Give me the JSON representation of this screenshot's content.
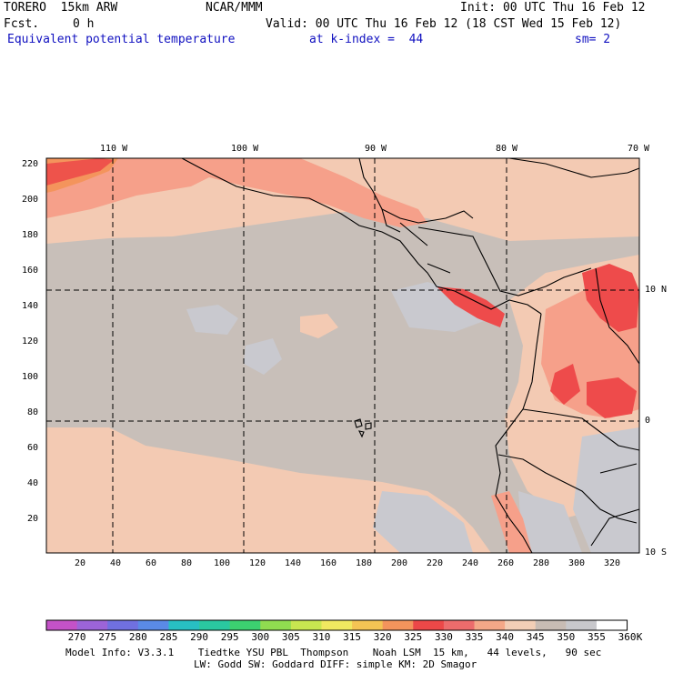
{
  "header": {
    "model": "TORERO  15km ARW",
    "org": "NCAR/MMM",
    "init": "Init: 00 UTC Thu 16 Feb 12",
    "fcst_label": "Fcst.",
    "fcst_value": "0 h",
    "valid": "Valid: 00 UTC Thu 16 Feb 12 (18 CST Wed 15 Feb 12)",
    "field": "Equivalent potential temperature",
    "level": "at k-index =  44",
    "smoothing": "sm= 2"
  },
  "map": {
    "top_lon_labels": [
      "110 W",
      "100 W",
      "90 W",
      "80 W",
      "70 W"
    ],
    "right_lat_labels": [
      "10 N",
      "0",
      "10 S"
    ],
    "y_tick_labels": [
      "220",
      "200",
      "180",
      "160",
      "140",
      "120",
      "100",
      "80",
      "60",
      "40",
      "20"
    ],
    "x_tick_labels": [
      "20",
      "40",
      "60",
      "80",
      "100",
      "120",
      "140",
      "160",
      "180",
      "200",
      "220",
      "240",
      "260",
      "280",
      "300",
      "320"
    ],
    "dominant_colors": {
      "ocean_gray": "#c8bfb9",
      "light_peach": "#f3cab3",
      "salmon": "#f6a08a",
      "red": "#ee4b4b",
      "light_gray": "#c9c9cf"
    }
  },
  "colorbar": {
    "levels": [
      "270",
      "275",
      "280",
      "285",
      "290",
      "295",
      "300",
      "305",
      "310",
      "315",
      "320",
      "325",
      "330",
      "335",
      "340",
      "345",
      "350",
      "355",
      "360"
    ],
    "unit": "K",
    "colors": [
      "#c452c8",
      "#9c64d8",
      "#7070e0",
      "#5a8ae6",
      "#28bfc2",
      "#2ac8a0",
      "#3cd070",
      "#90dc50",
      "#c8e650",
      "#f0e860",
      "#f4c454",
      "#f4945c",
      "#ec4848",
      "#ec6c6c",
      "#f4a888",
      "#f2ceb6",
      "#c8bcb4",
      "#c8c8cc",
      "#ffffff"
    ]
  },
  "footer": {
    "line1": "Model Info: V3.3.1    Tiedtke YSU PBL  Thompson    Noah LSM  15 km,   44 levels,   90 sec",
    "line2": "LW: Godd SW: Goddard DIFF: simple KM: 2D Smagor"
  }
}
